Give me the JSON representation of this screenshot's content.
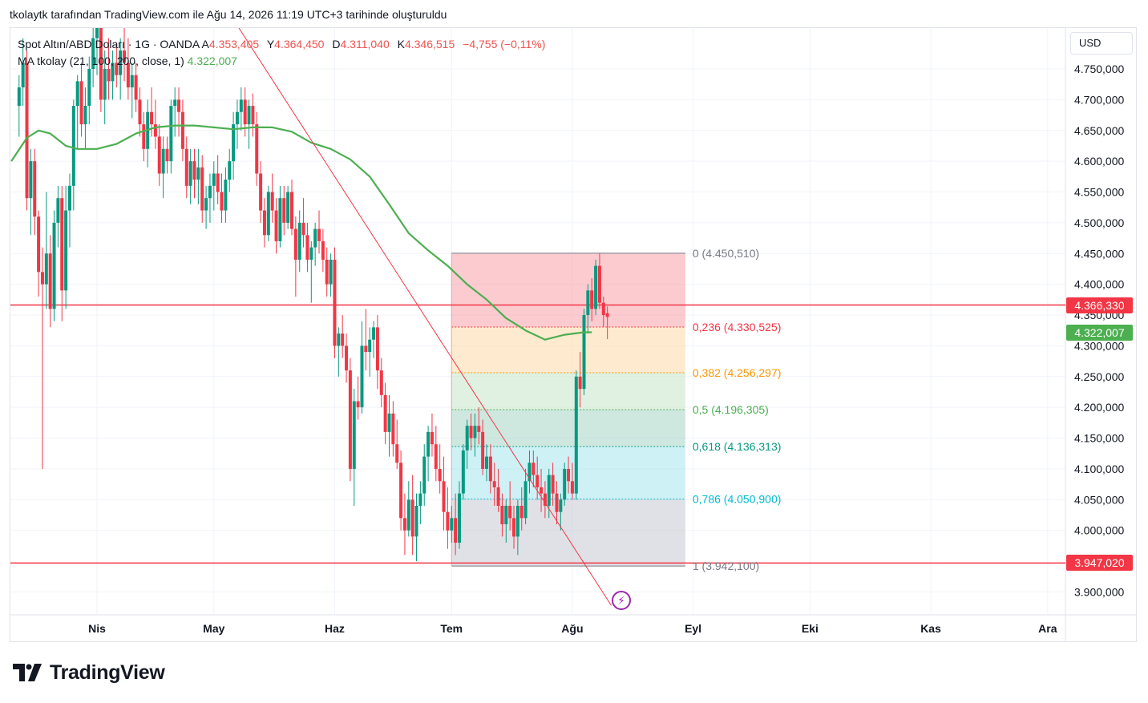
{
  "header": {
    "title": "tkolaytk tarafından TradingView.com ile Ağu 14, 2026 11:19 UTC+3 tarihinde oluşturuldu"
  },
  "legend": {
    "symbol": "Spot Altın/ABD Doları · 1G · OANDA",
    "open_label": "A",
    "open": "4.353,405",
    "high_label": "Y",
    "high": "4.364,450",
    "low_label": "D",
    "low": "4.311,040",
    "close_label": "K",
    "close": "4.346,515",
    "change": "−4,755 (−0,11%)",
    "ma_label": "MA tkolay (21, 100, 200, close, 1)",
    "ma_value": "4.322,007"
  },
  "currency": "USD",
  "price_tags": [
    {
      "text": "4.366,330",
      "price": 4366.33,
      "color": "#f23645"
    },
    {
      "text": "4.322,007",
      "price": 4322.007,
      "color": "#4caf50"
    },
    {
      "text": "3.947,020",
      "price": 3947.02,
      "color": "#f23645"
    }
  ],
  "logo": {
    "text": "TradingView"
  },
  "chart_data": {
    "type": "candlestick",
    "y_axis_ticks": [
      {
        "v": 4750,
        "t": "4.750,000"
      },
      {
        "v": 4700,
        "t": "4.700,000"
      },
      {
        "v": 4650,
        "t": "4.650,000"
      },
      {
        "v": 4600,
        "t": "4.600,000"
      },
      {
        "v": 4550,
        "t": "4.550,000"
      },
      {
        "v": 4500,
        "t": "4.500,000"
      },
      {
        "v": 4450,
        "t": "4.450,000"
      },
      {
        "v": 4400,
        "t": "4.400,000"
      },
      {
        "v": 4350,
        "t": "4.350,000"
      },
      {
        "v": 4300,
        "t": "4.300,000"
      },
      {
        "v": 4250,
        "t": "4.250,000"
      },
      {
        "v": 4200,
        "t": "4.200,000"
      },
      {
        "v": 4150,
        "t": "4.150,000"
      },
      {
        "v": 4100,
        "t": "4.100,000"
      },
      {
        "v": 4050,
        "t": "4.050,000"
      },
      {
        "v": 4000,
        "t": "4.000,000"
      },
      {
        "v": 3900,
        "t": "3.900,000"
      }
    ],
    "x_axis_ticks": [
      {
        "day": 0,
        "t": "Nis"
      },
      {
        "day": 30,
        "t": "May"
      },
      {
        "day": 61,
        "t": "Haz"
      },
      {
        "day": 91,
        "t": "Tem"
      },
      {
        "day": 122,
        "t": "Ağu"
      },
      {
        "day": 153,
        "t": "Eyl"
      },
      {
        "day": 183,
        "t": "Eki"
      },
      {
        "day": 214,
        "t": "Kas"
      },
      {
        "day": 244,
        "t": "Ara"
      }
    ],
    "horizontal_lines": [
      {
        "price": 4366.33,
        "color": "#f23645"
      },
      {
        "price": 3947.02,
        "color": "#f23645"
      }
    ],
    "trendline": {
      "from": {
        "day": 32,
        "price": 4860
      },
      "to": {
        "day": 132,
        "price": 3878
      },
      "color": "#f23645"
    },
    "fibonacci": {
      "start_day": 91,
      "end_day": 151,
      "high": 4450.51,
      "low": 3942.1,
      "levels": [
        {
          "ratio": 0,
          "text": "0 (4.450,510)",
          "price": 4450.51,
          "color": "#787b86",
          "fill": "#f7a1a9"
        },
        {
          "ratio": 0.236,
          "text": "0,236 (4.330,525)",
          "price": 4330.525,
          "color": "#f23645",
          "fill": "#fdd9a8"
        },
        {
          "ratio": 0.382,
          "text": "0,382 (4.256,297)",
          "price": 4256.297,
          "color": "#ff9800",
          "fill": "#c8e6c9"
        },
        {
          "ratio": 0.5,
          "text": "0,5 (4.196,305)",
          "price": 4196.305,
          "color": "#4caf50",
          "fill": "#a5d6c7"
        },
        {
          "ratio": 0.618,
          "text": "0,618 (4.136,313)",
          "price": 4136.313,
          "color": "#089981",
          "fill": "#a6e5ef"
        },
        {
          "ratio": 0.786,
          "text": "0,786 (4.050,900)",
          "price": 4050.9,
          "color": "#00bcd4",
          "fill": "#c7c9d1"
        },
        {
          "ratio": 1,
          "text": "1 (3.942,100)",
          "price": 3942.1,
          "color": "#787b86",
          "fill": null
        }
      ]
    },
    "moving_average": {
      "name": "MA tkolay (21, 100, 200, close, 1)",
      "color": "#4caf50",
      "points": [
        [
          -22,
          4600
        ],
        [
          -18,
          4638
        ],
        [
          -15,
          4650
        ],
        [
          -12,
          4645
        ],
        [
          -8,
          4625
        ],
        [
          -5,
          4620
        ],
        [
          0,
          4620
        ],
        [
          5,
          4628
        ],
        [
          10,
          4645
        ],
        [
          15,
          4655
        ],
        [
          20,
          4658
        ],
        [
          25,
          4658
        ],
        [
          30,
          4655
        ],
        [
          35,
          4652
        ],
        [
          40,
          4655
        ],
        [
          45,
          4655
        ],
        [
          50,
          4648
        ],
        [
          55,
          4630
        ],
        [
          60,
          4620
        ],
        [
          65,
          4603
        ],
        [
          70,
          4575
        ],
        [
          75,
          4530
        ],
        [
          80,
          4483
        ],
        [
          85,
          4455
        ],
        [
          90,
          4430
        ],
        [
          95,
          4400
        ],
        [
          100,
          4375
        ],
        [
          105,
          4345
        ],
        [
          110,
          4325
        ],
        [
          115,
          4310
        ],
        [
          120,
          4318
        ],
        [
          125,
          4322
        ],
        [
          127,
          4322
        ]
      ]
    },
    "candles": [
      [
        -20,
        4690,
        4740,
        4640,
        4720
      ],
      [
        -19,
        4720,
        4800,
        4690,
        4760
      ],
      [
        -18,
        4760,
        4780,
        4520,
        4540
      ],
      [
        -17,
        4540,
        4620,
        4480,
        4600
      ],
      [
        -16,
        4600,
        4620,
        4480,
        4510
      ],
      [
        -15,
        4510,
        4520,
        4380,
        4420
      ],
      [
        -14,
        4420,
        4460,
        4100,
        4400
      ],
      [
        -13,
        4400,
        4550,
        4360,
        4450
      ],
      [
        -12,
        4450,
        4480,
        4330,
        4360
      ],
      [
        -11,
        4360,
        4520,
        4340,
        4500
      ],
      [
        -10,
        4500,
        4560,
        4460,
        4540
      ],
      [
        -9,
        4540,
        4560,
        4340,
        4390
      ],
      [
        -8,
        4390,
        4560,
        4360,
        4520
      ],
      [
        -7,
        4520,
        4580,
        4460,
        4560
      ],
      [
        -6,
        4560,
        4700,
        4520,
        4690
      ],
      [
        -5,
        4690,
        4740,
        4620,
        4730
      ],
      [
        -4,
        4730,
        4760,
        4640,
        4660
      ],
      [
        -3,
        4660,
        4720,
        4620,
        4690
      ],
      [
        -2,
        4690,
        4770,
        4660,
        4750
      ],
      [
        -1,
        4750,
        4830,
        4720,
        4800
      ],
      [
        0,
        4800,
        4860,
        4740,
        4820
      ],
      [
        1,
        4820,
        4840,
        4680,
        4700
      ],
      [
        2,
        4700,
        4780,
        4660,
        4750
      ],
      [
        3,
        4750,
        4800,
        4700,
        4730
      ],
      [
        4,
        4730,
        4780,
        4700,
        4760
      ],
      [
        5,
        4760,
        4790,
        4720,
        4740
      ],
      [
        6,
        4740,
        4800,
        4700,
        4780
      ],
      [
        7,
        4780,
        4820,
        4730,
        4760
      ],
      [
        8,
        4760,
        4800,
        4700,
        4720
      ],
      [
        9,
        4720,
        4760,
        4670,
        4740
      ],
      [
        10,
        4740,
        4760,
        4680,
        4700
      ],
      [
        11,
        4700,
        4720,
        4640,
        4660
      ],
      [
        12,
        4660,
        4680,
        4600,
        4620
      ],
      [
        13,
        4620,
        4700,
        4590,
        4680
      ],
      [
        14,
        4680,
        4720,
        4640,
        4660
      ],
      [
        15,
        4660,
        4700,
        4620,
        4640
      ],
      [
        16,
        4640,
        4660,
        4560,
        4580
      ],
      [
        17,
        4580,
        4640,
        4540,
        4620
      ],
      [
        18,
        4620,
        4640,
        4580,
        4600
      ],
      [
        19,
        4600,
        4700,
        4580,
        4690
      ],
      [
        20,
        4690,
        4720,
        4640,
        4700
      ],
      [
        21,
        4700,
        4720,
        4640,
        4680
      ],
      [
        22,
        4680,
        4700,
        4600,
        4620
      ],
      [
        23,
        4620,
        4640,
        4540,
        4560
      ],
      [
        24,
        4560,
        4620,
        4530,
        4600
      ],
      [
        25,
        4600,
        4620,
        4540,
        4570
      ],
      [
        26,
        4570,
        4620,
        4530,
        4590
      ],
      [
        27,
        4590,
        4610,
        4500,
        4520
      ],
      [
        28,
        4520,
        4560,
        4490,
        4540
      ],
      [
        29,
        4540,
        4580,
        4500,
        4560
      ],
      [
        30,
        4560,
        4600,
        4520,
        4580
      ],
      [
        31,
        4580,
        4610,
        4530,
        4550
      ],
      [
        32,
        4550,
        4580,
        4500,
        4520
      ],
      [
        33,
        4520,
        4590,
        4500,
        4570
      ],
      [
        34,
        4570,
        4620,
        4550,
        4600
      ],
      [
        35,
        4600,
        4680,
        4570,
        4660
      ],
      [
        36,
        4660,
        4700,
        4620,
        4680
      ],
      [
        37,
        4680,
        4720,
        4650,
        4700
      ],
      [
        38,
        4700,
        4720,
        4640,
        4660
      ],
      [
        39,
        4660,
        4700,
        4620,
        4690
      ],
      [
        40,
        4690,
        4710,
        4640,
        4660
      ],
      [
        41,
        4660,
        4680,
        4560,
        4580
      ],
      [
        42,
        4580,
        4600,
        4500,
        4520
      ],
      [
        43,
        4520,
        4540,
        4460,
        4480
      ],
      [
        44,
        4480,
        4560,
        4470,
        4550
      ],
      [
        45,
        4550,
        4580,
        4500,
        4520
      ],
      [
        46,
        4520,
        4540,
        4450,
        4470
      ],
      [
        47,
        4470,
        4560,
        4460,
        4540
      ],
      [
        48,
        4540,
        4560,
        4480,
        4500
      ],
      [
        49,
        4500,
        4560,
        4490,
        4550
      ],
      [
        50,
        4550,
        4570,
        4480,
        4490
      ],
      [
        51,
        4490,
        4510,
        4380,
        4440
      ],
      [
        52,
        4440,
        4520,
        4420,
        4500
      ],
      [
        53,
        4500,
        4540,
        4460,
        4480
      ],
      [
        54,
        4480,
        4500,
        4420,
        4440
      ],
      [
        55,
        4440,
        4470,
        4370,
        4460
      ],
      [
        56,
        4460,
        4500,
        4430,
        4490
      ],
      [
        57,
        4490,
        4520,
        4450,
        4470
      ],
      [
        58,
        4470,
        4490,
        4420,
        4440
      ],
      [
        59,
        4440,
        4460,
        4380,
        4400
      ],
      [
        60,
        4400,
        4450,
        4380,
        4440
      ],
      [
        61,
        4440,
        4460,
        4280,
        4300
      ],
      [
        62,
        4300,
        4330,
        4250,
        4320
      ],
      [
        63,
        4320,
        4350,
        4280,
        4300
      ],
      [
        64,
        4300,
        4320,
        4240,
        4260
      ],
      [
        65,
        4260,
        4280,
        4080,
        4100
      ],
      [
        66,
        4100,
        4230,
        4040,
        4210
      ],
      [
        67,
        4210,
        4250,
        4180,
        4200
      ],
      [
        68,
        4200,
        4340,
        4190,
        4300
      ],
      [
        69,
        4300,
        4360,
        4260,
        4290
      ],
      [
        70,
        4290,
        4330,
        4250,
        4310
      ],
      [
        71,
        4310,
        4340,
        4280,
        4330
      ],
      [
        72,
        4330,
        4350,
        4230,
        4260
      ],
      [
        73,
        4260,
        4280,
        4200,
        4220
      ],
      [
        74,
        4220,
        4240,
        4140,
        4160
      ],
      [
        75,
        4160,
        4220,
        4120,
        4190
      ],
      [
        76,
        4190,
        4210,
        4120,
        4140
      ],
      [
        77,
        4140,
        4180,
        4100,
        4110
      ],
      [
        78,
        4110,
        4130,
        4000,
        4020
      ],
      [
        79,
        4020,
        4060,
        3960,
        4000
      ],
      [
        80,
        4000,
        4080,
        3990,
        4050
      ],
      [
        81,
        4050,
        4090,
        3960,
        3990
      ],
      [
        82,
        3990,
        4060,
        3950,
        4040
      ],
      [
        83,
        4040,
        4080,
        4010,
        4060
      ],
      [
        84,
        4060,
        4140,
        4040,
        4120
      ],
      [
        85,
        4120,
        4170,
        4080,
        4160
      ],
      [
        86,
        4160,
        4190,
        4120,
        4140
      ],
      [
        87,
        4140,
        4170,
        4080,
        4100
      ],
      [
        88,
        4100,
        4140,
        4060,
        4080
      ],
      [
        89,
        4080,
        4120,
        4000,
        4030
      ],
      [
        90,
        4030,
        4070,
        3970,
        4000
      ],
      [
        91,
        4000,
        4040,
        3980,
        4020
      ],
      [
        92,
        4020,
        4060,
        3960,
        3980
      ],
      [
        93,
        3980,
        4080,
        3970,
        4060
      ],
      [
        94,
        4060,
        4140,
        4050,
        4130
      ],
      [
        95,
        4130,
        4180,
        4100,
        4170
      ],
      [
        96,
        4170,
        4190,
        4130,
        4150
      ],
      [
        97,
        4150,
        4190,
        4120,
        4170
      ],
      [
        98,
        4170,
        4200,
        4140,
        4160
      ],
      [
        99,
        4160,
        4180,
        4090,
        4100
      ],
      [
        100,
        4100,
        4140,
        4080,
        4120
      ],
      [
        101,
        4120,
        4140,
        4060,
        4080
      ],
      [
        102,
        4080,
        4110,
        4040,
        4070
      ],
      [
        103,
        4070,
        4100,
        4030,
        4040
      ],
      [
        104,
        4040,
        4060,
        3990,
        4010
      ],
      [
        105,
        4010,
        4050,
        3980,
        4040
      ],
      [
        106,
        4040,
        4080,
        4000,
        4020
      ],
      [
        107,
        4020,
        4040,
        3970,
        3990
      ],
      [
        108,
        3990,
        4050,
        3960,
        4040
      ],
      [
        109,
        4040,
        4070,
        4000,
        4020
      ],
      [
        110,
        4020,
        4100,
        4010,
        4080
      ],
      [
        111,
        4080,
        4130,
        4060,
        4110
      ],
      [
        112,
        4110,
        4130,
        4070,
        4090
      ],
      [
        113,
        4090,
        4120,
        4050,
        4070
      ],
      [
        114,
        4070,
        4100,
        4030,
        4060
      ],
      [
        115,
        4060,
        4080,
        4020,
        4040
      ],
      [
        116,
        4040,
        4100,
        4020,
        4090
      ],
      [
        117,
        4090,
        4110,
        4040,
        4060
      ],
      [
        118,
        4060,
        4080,
        4010,
        4030
      ],
      [
        119,
        4030,
        4060,
        4000,
        4050
      ],
      [
        120,
        4050,
        4110,
        4040,
        4100
      ],
      [
        121,
        4100,
        4120,
        4060,
        4080
      ],
      [
        122,
        4080,
        4110,
        4050,
        4060
      ],
      [
        123,
        4060,
        4260,
        4050,
        4250
      ],
      [
        124,
        4250,
        4290,
        4200,
        4230
      ],
      [
        125,
        4230,
        4360,
        4220,
        4350
      ],
      [
        126,
        4350,
        4400,
        4320,
        4390
      ],
      [
        127,
        4390,
        4410,
        4340,
        4360
      ],
      [
        128,
        4360,
        4440,
        4350,
        4430
      ],
      [
        129,
        4430,
        4450,
        4360,
        4370
      ],
      [
        130,
        4370,
        4380,
        4330,
        4350
      ],
      [
        131,
        4353,
        4364,
        4311,
        4347
      ]
    ]
  }
}
